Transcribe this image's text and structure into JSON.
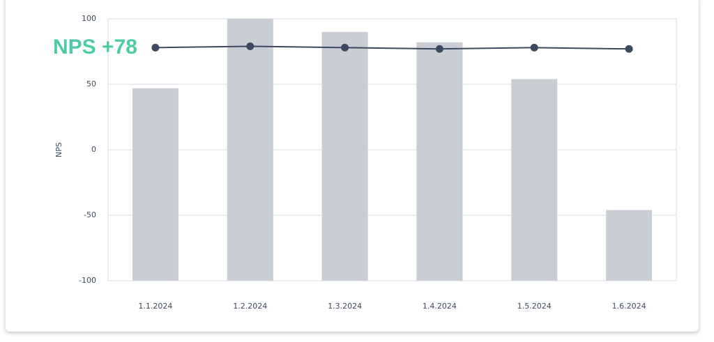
{
  "chart_data": {
    "type": "bar_line",
    "annotation": "NPS +78",
    "y_label": "NPS",
    "categories": [
      "1.1.2024",
      "1.2.2024",
      "1.3.2024",
      "1.4.2024",
      "1.5.2024",
      "1.6.2024"
    ],
    "series": [
      {
        "type": "bar",
        "color": "#c9ced5",
        "values": [
          47,
          100,
          90,
          82,
          54,
          -46
        ]
      },
      {
        "type": "line",
        "color": "#3c4a5f",
        "values": [
          78,
          79,
          78,
          77,
          78,
          77
        ]
      }
    ],
    "ylim": [
      -100,
      100
    ],
    "yticks": [
      -100,
      -50,
      0,
      50,
      100
    ],
    "grid": true
  }
}
